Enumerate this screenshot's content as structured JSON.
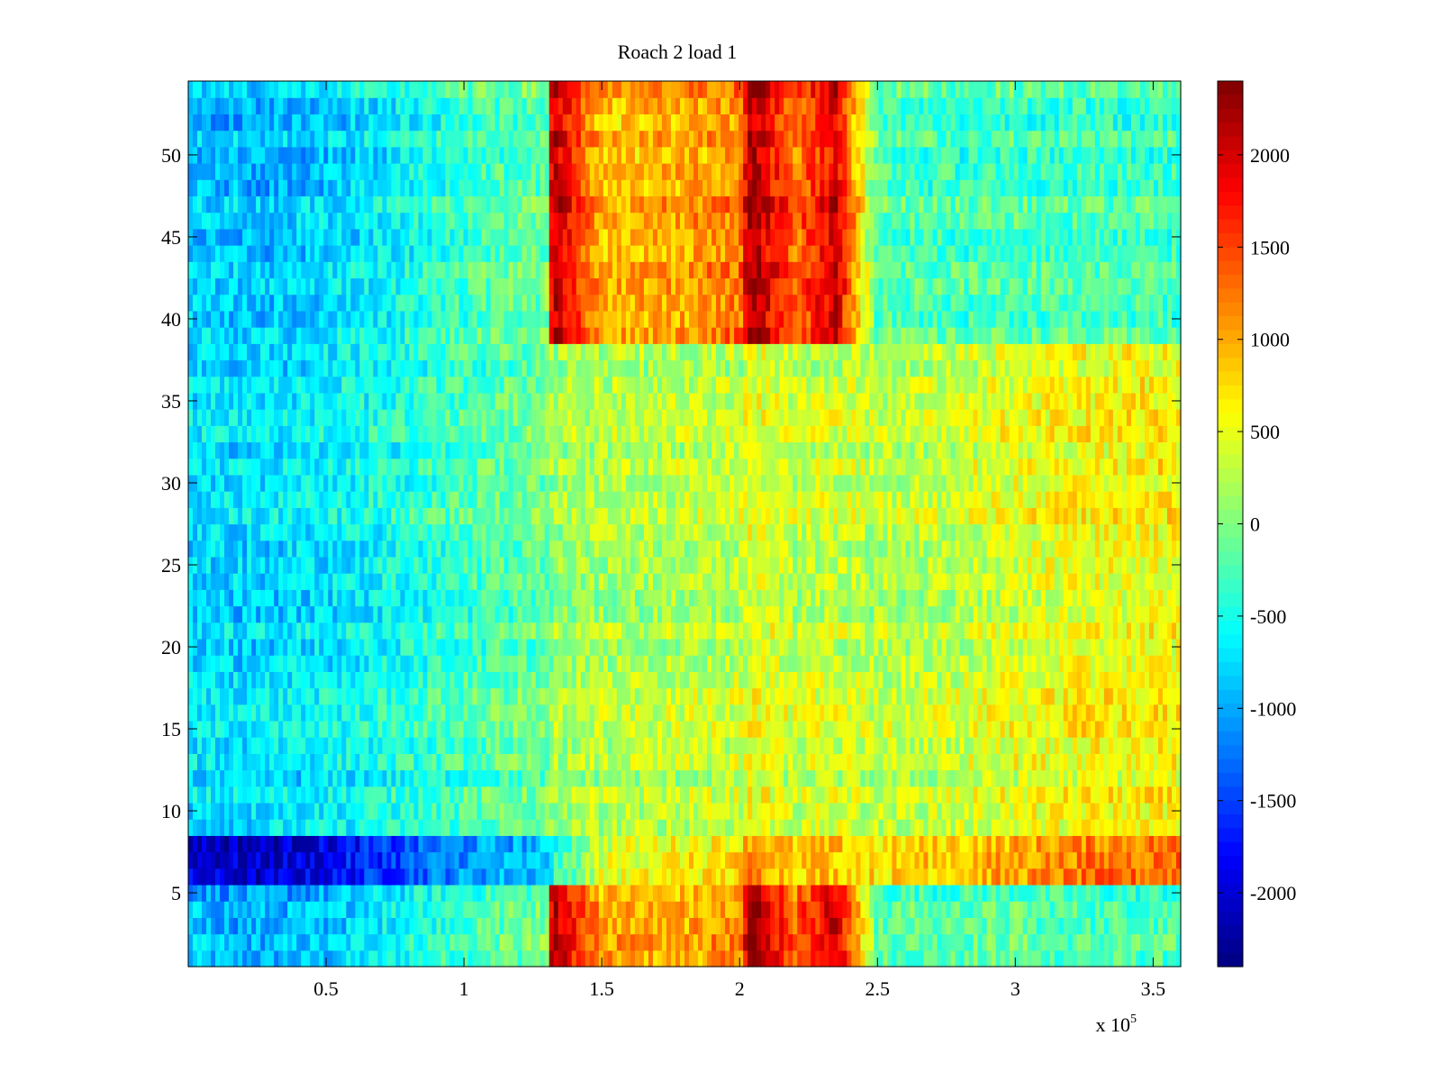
{
  "chart_data": {
    "type": "heatmap",
    "title": "Roach 2 load 1",
    "xlabel": "",
    "ylabel": "",
    "x_multiplier_label": {
      "base": "x 10",
      "exponent": "5"
    },
    "xlim": [
      0,
      3.6
    ],
    "ylim": [
      0.5,
      54.5
    ],
    "x_ticks": [
      {
        "value": 0.5,
        "label": "0.5"
      },
      {
        "value": 1,
        "label": "1"
      },
      {
        "value": 1.5,
        "label": "1.5"
      },
      {
        "value": 2,
        "label": "2"
      },
      {
        "value": 2.5,
        "label": "2.5"
      },
      {
        "value": 3,
        "label": "3"
      },
      {
        "value": 3.5,
        "label": "3.5"
      }
    ],
    "y_ticks": [
      {
        "value": 5,
        "label": "5"
      },
      {
        "value": 10,
        "label": "10"
      },
      {
        "value": 15,
        "label": "15"
      },
      {
        "value": 20,
        "label": "20"
      },
      {
        "value": 25,
        "label": "25"
      },
      {
        "value": 30,
        "label": "30"
      },
      {
        "value": 35,
        "label": "35"
      },
      {
        "value": 40,
        "label": "40"
      },
      {
        "value": 45,
        "label": "45"
      },
      {
        "value": 50,
        "label": "50"
      }
    ],
    "colorbar": {
      "colormap": "jet",
      "clim": [
        -2400,
        2400
      ],
      "ticks": [
        {
          "value": 2000,
          "label": "2000"
        },
        {
          "value": 1500,
          "label": "1500"
        },
        {
          "value": 1000,
          "label": "1000"
        },
        {
          "value": 500,
          "label": "500"
        },
        {
          "value": 0,
          "label": "0"
        },
        {
          "value": -500,
          "label": "-500"
        },
        {
          "value": -1000,
          "label": "-1000"
        },
        {
          "value": -1500,
          "label": "-1500"
        },
        {
          "value": -2000,
          "label": "-2000"
        }
      ]
    },
    "rows": 54,
    "approx_column_means": {
      "x": [
        0,
        0.25,
        0.5,
        0.75,
        1.0,
        1.3,
        1.32,
        1.5,
        1.75,
        2.0,
        2.04,
        2.2,
        2.35,
        2.5,
        2.75,
        3.0,
        3.25,
        3.6
      ],
      "upper_rows_mean": [
        -850,
        -900,
        -800,
        -600,
        -300,
        -100,
        2200,
        900,
        1000,
        1200,
        2300,
        1300,
        2000,
        -200,
        -300,
        -250,
        -300,
        -300
      ],
      "middle_rows_mean": [
        -750,
        -750,
        -650,
        -500,
        -300,
        -100,
        100,
        200,
        250,
        300,
        500,
        300,
        350,
        250,
        300,
        450,
        550,
        600
      ],
      "row_7_mean": [
        -2000,
        -2100,
        -1900,
        -1500,
        -1100,
        -900,
        -500,
        400,
        600,
        700,
        1200,
        800,
        900,
        700,
        850,
        1000,
        1200,
        1300
      ],
      "lower_rows_mean": [
        -950,
        -1050,
        -950,
        -600,
        -300,
        -100,
        2200,
        1000,
        900,
        1100,
        2300,
        1300,
        2000,
        -200,
        -250,
        -200,
        -300,
        -300
      ]
    },
    "band_rows": {
      "upper": [
        39,
        54
      ],
      "middle": [
        9,
        38
      ],
      "row_7": [
        6,
        8
      ],
      "lower": [
        1,
        5
      ]
    },
    "grid": false
  }
}
